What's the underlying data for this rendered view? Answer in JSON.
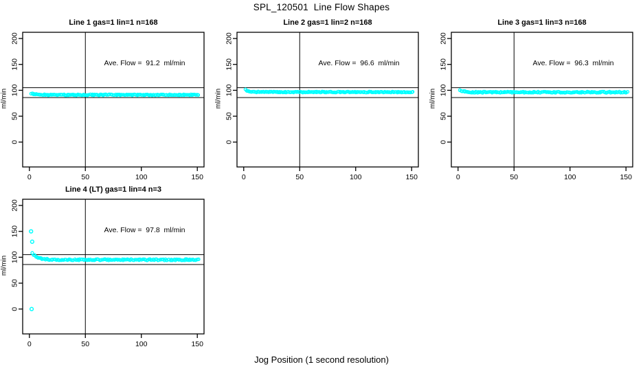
{
  "figure": {
    "title": "SPL_120501  Line Flow Shapes",
    "xlabel": "Jog Position (1 second resolution)"
  },
  "chart_data": {
    "type": "scatter",
    "title": "SPL_120501  Line Flow Shapes",
    "xlabel": "Jog Position (1 second resolution)",
    "ylabel": "ml/min",
    "x_ticks": [
      0,
      50,
      100,
      150
    ],
    "y_ticks": [
      0,
      50,
      100,
      150,
      200
    ],
    "xlim": [
      -6,
      156
    ],
    "ylim": [
      -48,
      212
    ],
    "grid": false,
    "point_color": "#00FFFF",
    "axis_color": "#000000",
    "reference_lines": {
      "horizontal": [
        105,
        86
      ],
      "vertical": [
        50
      ]
    },
    "panels": [
      {
        "id": "line1",
        "title": "Line 1 gas=1 lin=1 n=168",
        "annotation": "Ave. Flow =  91.2  ml/min",
        "n": 168,
        "ave_flow": 91.2,
        "band": {
          "x_start": 2,
          "x_end": 151,
          "n_points": 170,
          "y_start": 93.5,
          "y_settle": 91.2,
          "decay": 4,
          "jitter": 1.0,
          "seed": 1234
        },
        "outliers": []
      },
      {
        "id": "line2",
        "title": "Line 2 gas=1 lin=2 n=168",
        "annotation": "Ave. Flow =  96.6  ml/min",
        "n": 168,
        "ave_flow": 96.6,
        "band": {
          "x_start": 2,
          "x_end": 151,
          "n_points": 170,
          "y_start": 100.5,
          "y_settle": 96.6,
          "decay": 3,
          "jitter": 0.9,
          "seed": 5678
        },
        "outliers": []
      },
      {
        "id": "line3",
        "title": "Line 3 gas=1 lin=3 n=168",
        "annotation": "Ave. Flow =  96.3  ml/min",
        "n": 168,
        "ave_flow": 96.3,
        "band": {
          "x_start": 2,
          "x_end": 151,
          "n_points": 165,
          "y_start": 100,
          "y_settle": 96.3,
          "decay": 3,
          "jitter": 1.2,
          "seed": 9012
        },
        "outliers": []
      },
      {
        "id": "line4",
        "title": "Line 4 (LT) gas=1 lin=4 n=3",
        "annotation": "Ave. Flow =  97.8  ml/min",
        "n": 3,
        "ave_flow": 97.8,
        "band": {
          "x_start": 3,
          "x_end": 151,
          "n_points": 155,
          "y_start": 107,
          "y_settle": 95.2,
          "decay": 5,
          "jitter": 1.2,
          "seed": 3456
        },
        "outliers": [
          [
            1.5,
            150
          ],
          [
            2.5,
            130
          ],
          [
            2,
            0
          ]
        ]
      }
    ]
  }
}
